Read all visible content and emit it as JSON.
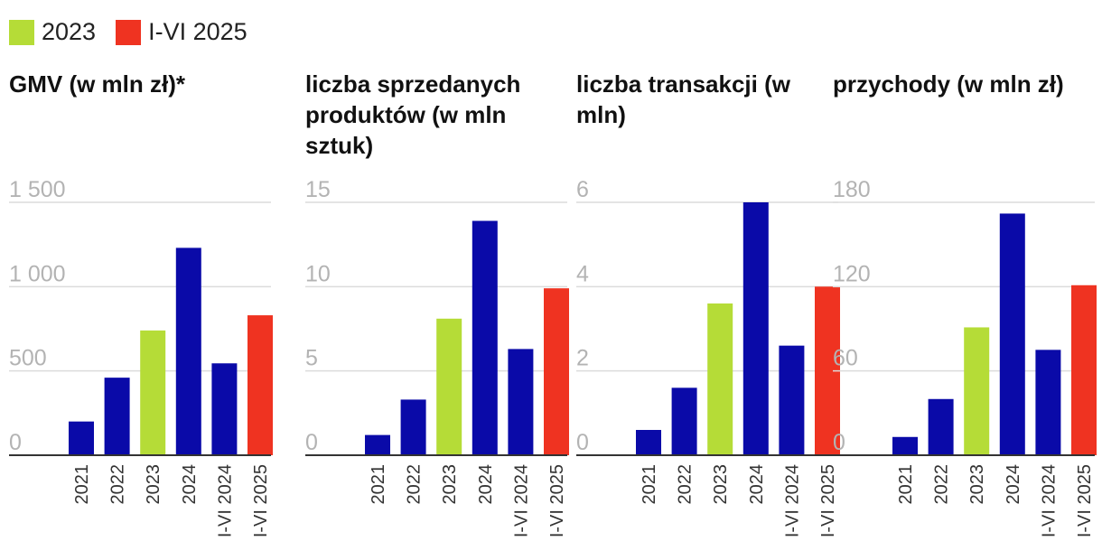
{
  "legend": [
    {
      "label": "2023",
      "color": "#b5dc37"
    },
    {
      "label": "I-VI 2025",
      "color": "#ef3321"
    }
  ],
  "colors": {
    "default_bar": "#0a0aa8",
    "highlight_2023": "#b5dc37",
    "highlight_2025": "#ef3321",
    "grid": "#dcdcdc",
    "tick_text": "#b3b3b3"
  },
  "chart_data": [
    {
      "type": "bar",
      "title": "GMV (w mln zł)*",
      "categories": [
        "2021",
        "2022",
        "2023",
        "2024",
        "I-VI 2024",
        "I-VI 2025"
      ],
      "values": [
        200,
        460,
        740,
        1230,
        545,
        830
      ],
      "ylim": [
        0,
        1500
      ],
      "yticks": [
        0,
        500,
        1000,
        1500
      ],
      "ytick_labels": [
        "0",
        "500",
        "1 000",
        "1 500"
      ],
      "bar_colors": [
        "#0a0aa8",
        "#0a0aa8",
        "#b5dc37",
        "#0a0aa8",
        "#0a0aa8",
        "#ef3321"
      ],
      "grid": true
    },
    {
      "type": "bar",
      "title": "liczba sprzedanych produktów (w mln sztuk)",
      "categories": [
        "2021",
        "2022",
        "2023",
        "2024",
        "I-VI 2024",
        "I-VI 2025"
      ],
      "values": [
        1.2,
        3.3,
        8.1,
        13.9,
        6.3,
        9.9
      ],
      "ylim": [
        0,
        15
      ],
      "yticks": [
        0,
        5,
        10,
        15
      ],
      "ytick_labels": [
        "0",
        "5",
        "10",
        "15"
      ],
      "bar_colors": [
        "#0a0aa8",
        "#0a0aa8",
        "#b5dc37",
        "#0a0aa8",
        "#0a0aa8",
        "#ef3321"
      ],
      "grid": true
    },
    {
      "type": "bar",
      "title": "liczba transakcji (w mln)",
      "categories": [
        "2021",
        "2022",
        "2023",
        "2024",
        "I-VI 2024",
        "I-VI 2025"
      ],
      "values": [
        0.6,
        1.6,
        3.6,
        6.0,
        2.6,
        4.0
      ],
      "ylim": [
        0,
        6
      ],
      "yticks": [
        0,
        2,
        4,
        6
      ],
      "ytick_labels": [
        "0",
        "2",
        "4",
        "6"
      ],
      "bar_colors": [
        "#0a0aa8",
        "#0a0aa8",
        "#b5dc37",
        "#0a0aa8",
        "#0a0aa8",
        "#ef3321"
      ],
      "grid": true
    },
    {
      "type": "bar",
      "title": "przychody (w mln zł)",
      "categories": [
        "2021",
        "2022",
        "2023",
        "2024",
        "I-VI 2024",
        "I-VI 2025"
      ],
      "values": [
        13,
        40,
        91,
        172,
        75,
        121
      ],
      "ylim": [
        0,
        180
      ],
      "yticks": [
        0,
        60,
        120,
        180
      ],
      "ytick_labels": [
        "0",
        "60",
        "120",
        "180"
      ],
      "bar_colors": [
        "#0a0aa8",
        "#0a0aa8",
        "#b5dc37",
        "#0a0aa8",
        "#0a0aa8",
        "#ef3321"
      ],
      "grid": true
    }
  ]
}
